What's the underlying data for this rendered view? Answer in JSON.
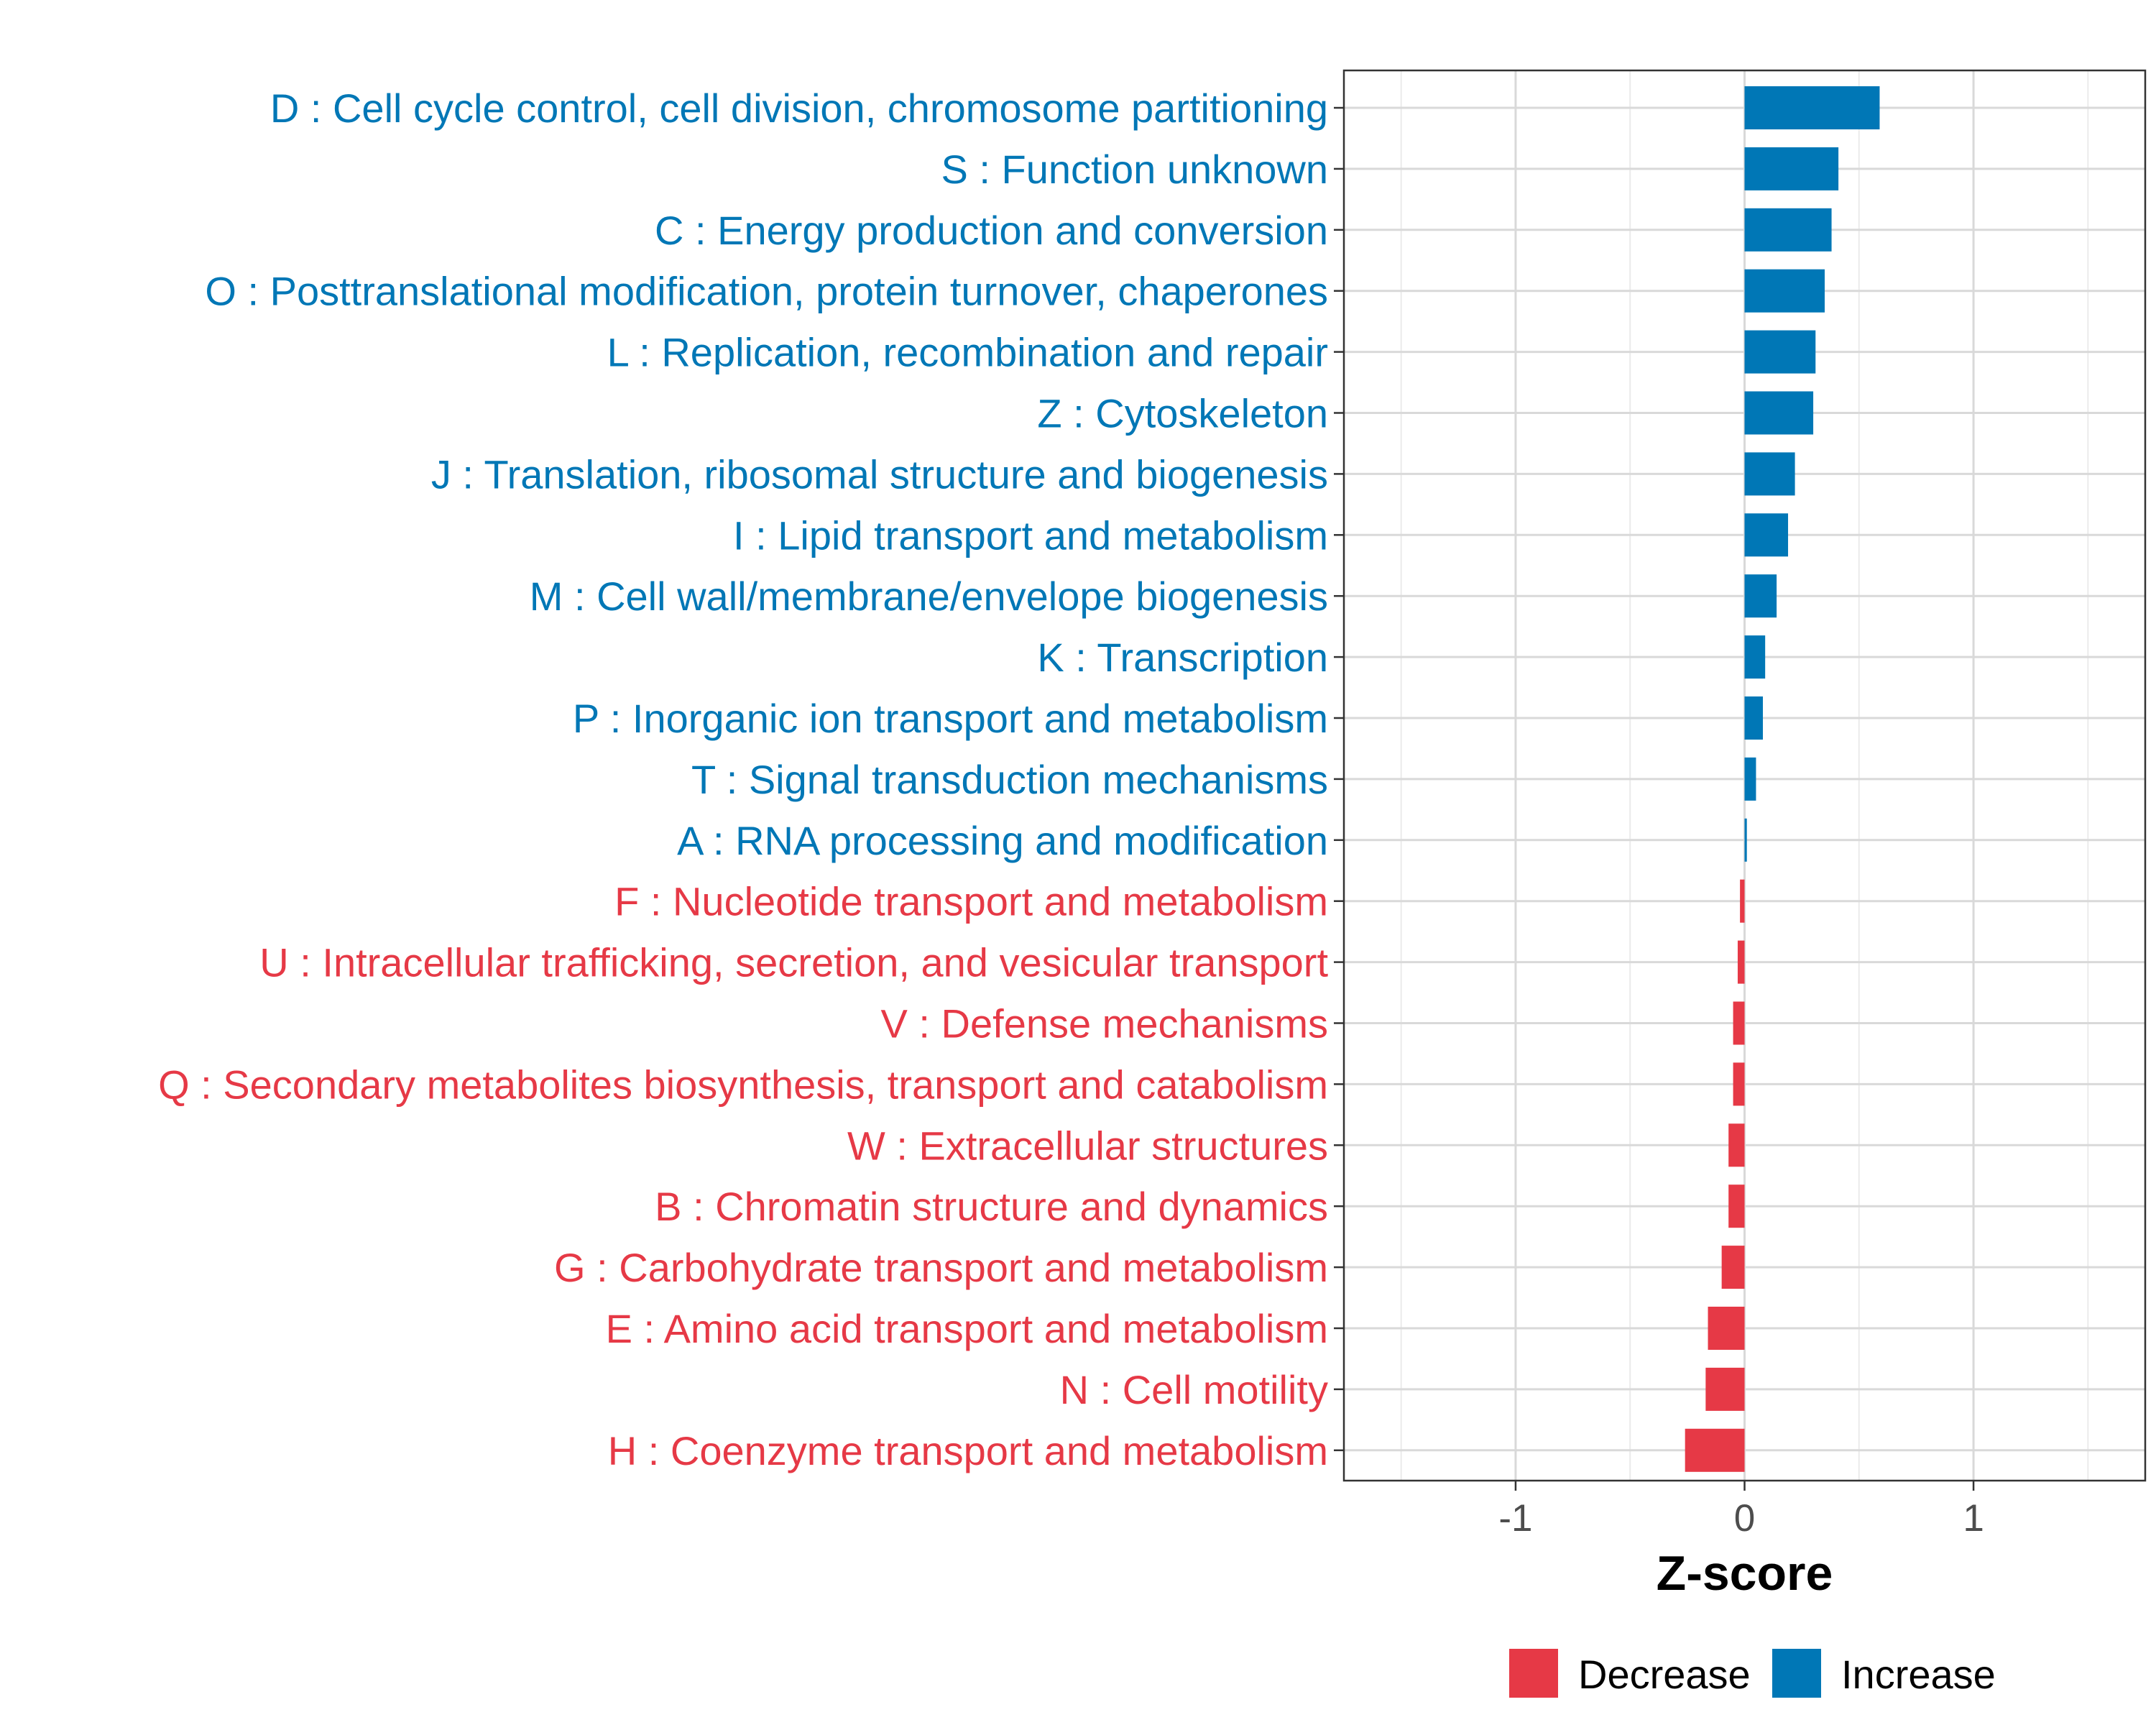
{
  "chart_data": {
    "type": "bar",
    "orientation": "horizontal",
    "xlabel": "Z-score",
    "xlim": [
      -1.75,
      1.75
    ],
    "xticks": [
      -1,
      0,
      1
    ],
    "xtick_labels": [
      "-1",
      "0",
      "1"
    ],
    "grid": true,
    "colors": {
      "Decrease": "#e63946",
      "Increase": "#0077b6"
    },
    "legend": {
      "position": "bottom",
      "entries": [
        {
          "label": "Decrease",
          "color": "#e63946"
        },
        {
          "label": "Increase",
          "color": "#0077b6"
        }
      ]
    },
    "categories": [
      {
        "label": "D : Cell cycle control, cell division, chromosome partitioning",
        "value": 0.59,
        "direction": "Increase"
      },
      {
        "label": "S : Function unknown",
        "value": 0.41,
        "direction": "Increase"
      },
      {
        "label": "C : Energy production and conversion",
        "value": 0.38,
        "direction": "Increase"
      },
      {
        "label": "O : Posttranslational modification, protein turnover, chaperones",
        "value": 0.35,
        "direction": "Increase"
      },
      {
        "label": "L : Replication, recombination and repair",
        "value": 0.31,
        "direction": "Increase"
      },
      {
        "label": "Z : Cytoskeleton",
        "value": 0.3,
        "direction": "Increase"
      },
      {
        "label": "J : Translation, ribosomal structure and biogenesis",
        "value": 0.22,
        "direction": "Increase"
      },
      {
        "label": "I : Lipid transport and metabolism",
        "value": 0.19,
        "direction": "Increase"
      },
      {
        "label": "M : Cell wall/membrane/envelope biogenesis",
        "value": 0.14,
        "direction": "Increase"
      },
      {
        "label": "K : Transcription",
        "value": 0.09,
        "direction": "Increase"
      },
      {
        "label": "P : Inorganic ion transport and metabolism",
        "value": 0.08,
        "direction": "Increase"
      },
      {
        "label": "T : Signal transduction mechanisms",
        "value": 0.05,
        "direction": "Increase"
      },
      {
        "label": "A : RNA processing and modification",
        "value": 0.01,
        "direction": "Increase"
      },
      {
        "label": "F : Nucleotide transport and metabolism",
        "value": -0.02,
        "direction": "Decrease"
      },
      {
        "label": "U : Intracellular trafficking, secretion, and vesicular transport",
        "value": -0.03,
        "direction": "Decrease"
      },
      {
        "label": "V : Defense mechanisms",
        "value": -0.05,
        "direction": "Decrease"
      },
      {
        "label": "Q : Secondary metabolites biosynthesis, transport and catabolism",
        "value": -0.05,
        "direction": "Decrease"
      },
      {
        "label": "W : Extracellular structures",
        "value": -0.07,
        "direction": "Decrease"
      },
      {
        "label": "B : Chromatin structure and dynamics",
        "value": -0.07,
        "direction": "Decrease"
      },
      {
        "label": "G : Carbohydrate transport and metabolism",
        "value": -0.1,
        "direction": "Decrease"
      },
      {
        "label": "E : Amino acid transport and metabolism",
        "value": -0.16,
        "direction": "Decrease"
      },
      {
        "label": "N : Cell motility",
        "value": -0.17,
        "direction": "Decrease"
      },
      {
        "label": "H : Coenzyme transport and metabolism",
        "value": -0.26,
        "direction": "Decrease"
      }
    ]
  }
}
